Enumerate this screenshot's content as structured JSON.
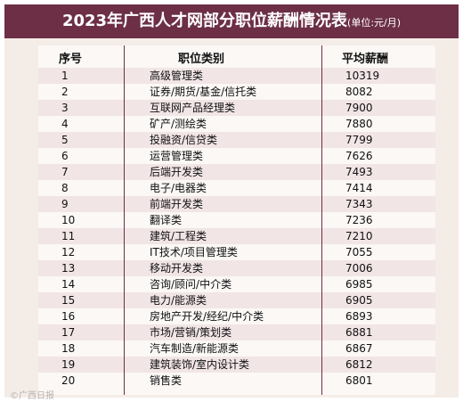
{
  "title": "2023年广西人才网部分职位薪酬情况表",
  "unit": "(单位:元/月)",
  "headers": {
    "no": "序号",
    "category": "职位类别",
    "salary": "平均薪酬"
  },
  "rows": [
    {
      "no": "1",
      "category": "高级管理类",
      "salary": "10319"
    },
    {
      "no": "2",
      "category": "证券/期货/基金/信托类",
      "salary": "8082"
    },
    {
      "no": "3",
      "category": "互联网产品经理类",
      "salary": "7900"
    },
    {
      "no": "4",
      "category": "矿产/测绘类",
      "salary": "7880"
    },
    {
      "no": "5",
      "category": "投融资/信贷类",
      "salary": "7799"
    },
    {
      "no": "6",
      "category": "运营管理类",
      "salary": "7626"
    },
    {
      "no": "7",
      "category": "后端开发类",
      "salary": "7493"
    },
    {
      "no": "8",
      "category": "电子/电器类",
      "salary": "7414"
    },
    {
      "no": "9",
      "category": "前端开发类",
      "salary": "7343"
    },
    {
      "no": "10",
      "category": "翻译类",
      "salary": "7236"
    },
    {
      "no": "11",
      "category": "建筑/工程类",
      "salary": "7210"
    },
    {
      "no": "12",
      "category": "IT技术/项目管理类",
      "salary": "7055"
    },
    {
      "no": "13",
      "category": "移动开发类",
      "salary": "7006"
    },
    {
      "no": "14",
      "category": "咨询/顾问/中介类",
      "salary": "6985"
    },
    {
      "no": "15",
      "category": "电力/能源类",
      "salary": "6905"
    },
    {
      "no": "16",
      "category": "房地产开发/经纪/中介类",
      "salary": "6893"
    },
    {
      "no": "17",
      "category": "市场/营销/策划类",
      "salary": "6881"
    },
    {
      "no": "18",
      "category": "汽车制造/新能源类",
      "salary": "6867"
    },
    {
      "no": "19",
      "category": "建筑装饰/室内设计类",
      "salary": "6812"
    },
    {
      "no": "20",
      "category": "销售类",
      "salary": "6801"
    }
  ],
  "watermark": "©广西日报",
  "colors": {
    "header_band": "#6c2f46",
    "row_shade": "#f1e5e6",
    "background": "#f4ece7"
  }
}
